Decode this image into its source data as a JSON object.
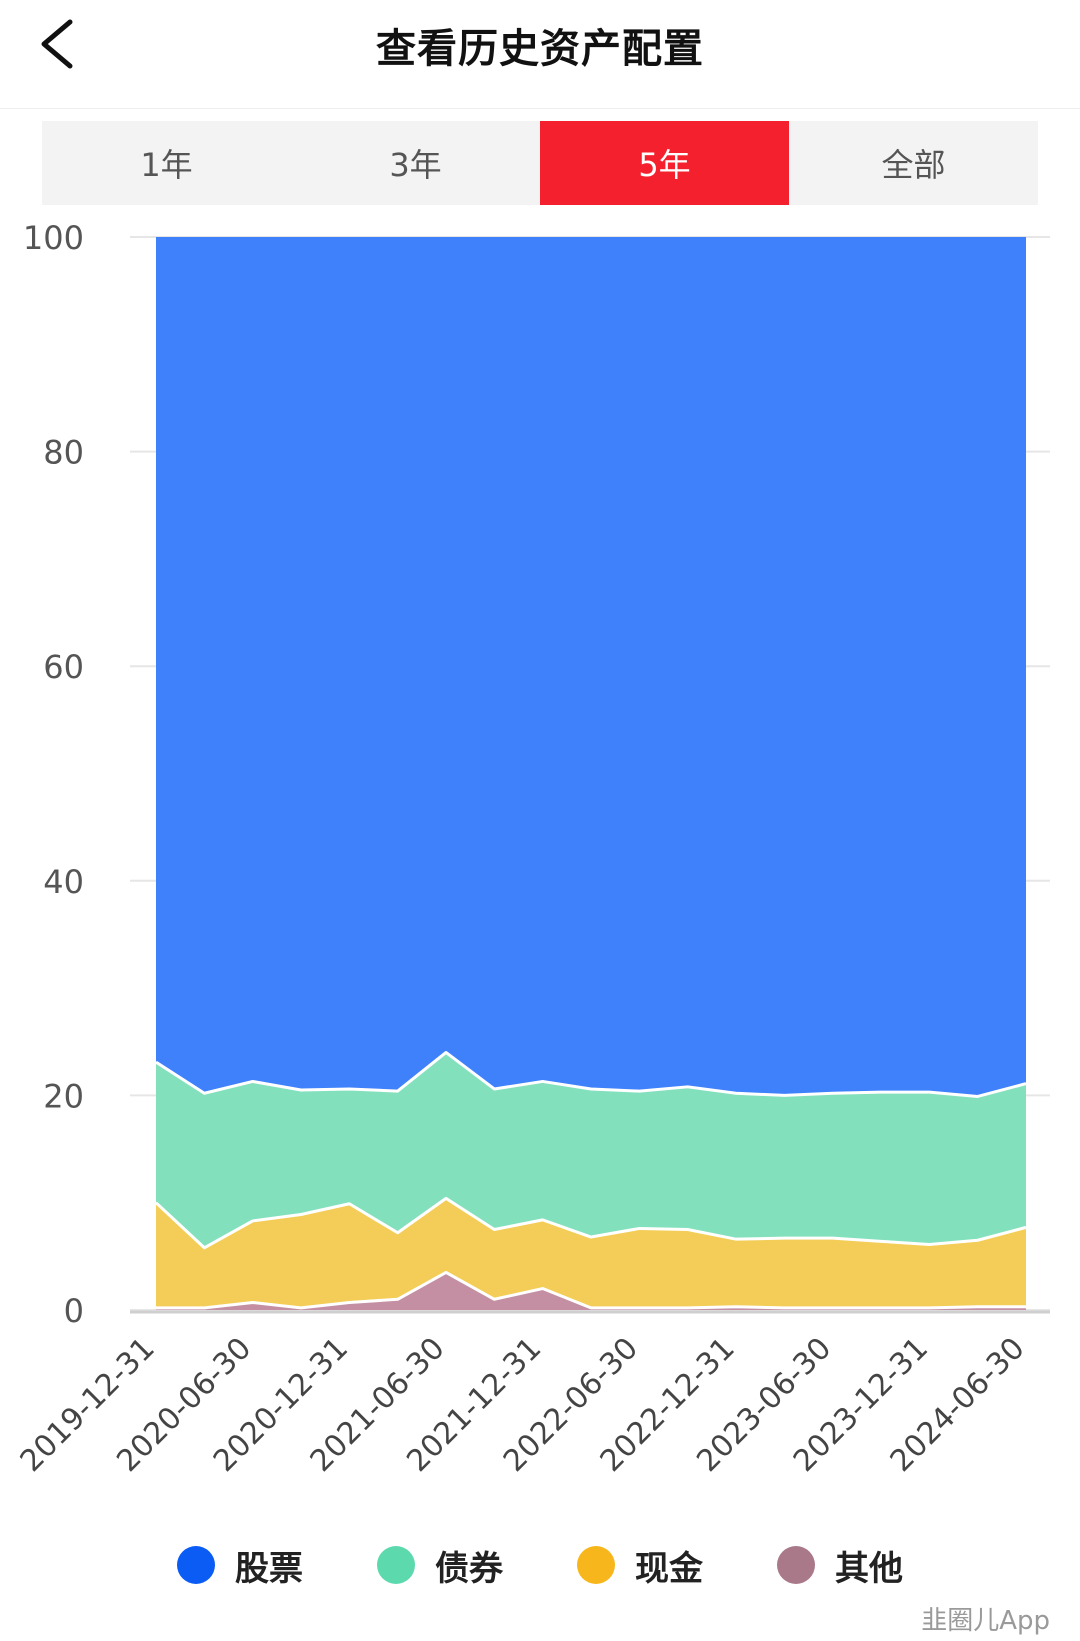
{
  "header": {
    "title": "查看历史资产配置"
  },
  "tabs": [
    {
      "label": "1年",
      "active": false
    },
    {
      "label": "3年",
      "active": false
    },
    {
      "label": "5年",
      "active": true
    },
    {
      "label": "全部",
      "active": false
    }
  ],
  "colors": {
    "stock": "#3f80fb",
    "bond": "#83e0bd",
    "cash": "#f3cd57",
    "other": "#c48fa3",
    "tab_active": "#f4202e"
  },
  "legend": [
    {
      "label": "股票",
      "color": "#0a5cf4"
    },
    {
      "label": "债券",
      "color": "#5dd9ae"
    },
    {
      "label": "现金",
      "color": "#f7b71c"
    },
    {
      "label": "其他",
      "color": "#a97889"
    }
  ],
  "chart_data": {
    "type": "area",
    "stacked": true,
    "x": [
      "2019-12-31",
      "2020-03-31",
      "2020-06-30",
      "2020-09-30",
      "2020-12-31",
      "2021-03-31",
      "2021-06-30",
      "2021-09-30",
      "2021-12-31",
      "2022-03-31",
      "2022-06-30",
      "2022-09-30",
      "2022-12-31",
      "2023-03-31",
      "2023-06-30",
      "2023-09-30",
      "2023-12-31",
      "2024-03-31",
      "2024-06-30"
    ],
    "x_tick_labels": [
      "2019-12-31",
      "2020-06-30",
      "2020-12-31",
      "2021-06-30",
      "2021-12-31",
      "2022-06-30",
      "2022-12-31",
      "2023-06-30",
      "2023-12-31",
      "2024-06-30"
    ],
    "ylim": [
      0,
      100
    ],
    "yticks": [
      0,
      20,
      40,
      60,
      80,
      100
    ],
    "grid": true,
    "legend_position": "bottom",
    "series": [
      {
        "name": "其他",
        "values": [
          0.2,
          0.2,
          0.7,
          0.2,
          0.7,
          1.0,
          3.5,
          1.0,
          2.0,
          0.2,
          0.2,
          0.2,
          0.3,
          0.2,
          0.2,
          0.2,
          0.2,
          0.3,
          0.3
        ]
      },
      {
        "name": "现金",
        "values": [
          9.8,
          5.6,
          7.6,
          8.7,
          9.2,
          6.2,
          6.9,
          6.5,
          6.4,
          6.6,
          7.4,
          7.3,
          6.3,
          6.5,
          6.5,
          6.2,
          5.9,
          6.2,
          7.4
        ]
      },
      {
        "name": "债券",
        "values": [
          13.1,
          14.4,
          13.0,
          11.6,
          10.7,
          13.2,
          13.6,
          13.1,
          12.9,
          13.8,
          12.8,
          13.3,
          13.6,
          13.3,
          13.5,
          13.9,
          14.2,
          13.4,
          13.4
        ]
      },
      {
        "name": "股票",
        "values": [
          76.9,
          79.8,
          78.7,
          79.5,
          79.4,
          79.6,
          76.0,
          79.4,
          78.7,
          79.4,
          79.6,
          79.2,
          79.8,
          80.0,
          79.8,
          79.7,
          79.7,
          80.1,
          78.9
        ]
      }
    ]
  },
  "watermark": "韭圈儿App"
}
